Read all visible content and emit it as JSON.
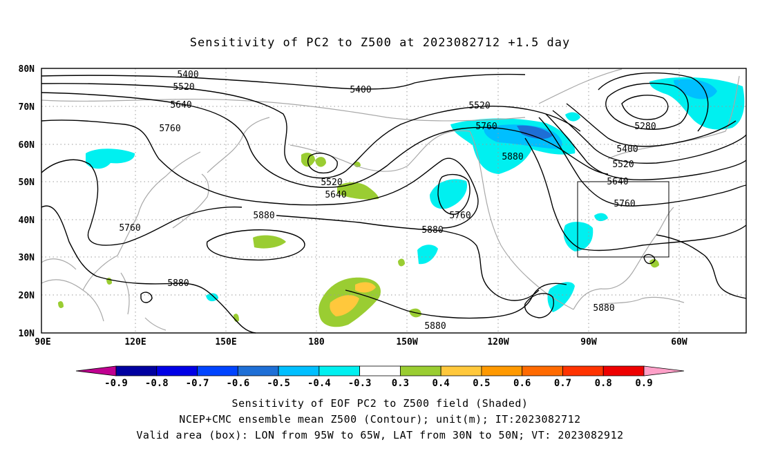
{
  "title": "Sensitivity of PC2 to Z500 at 2023082712 +1.5 day",
  "map": {
    "lon_ticks": [
      "90E",
      "120E",
      "150E",
      "180",
      "150W",
      "120W",
      "90W",
      "60W"
    ],
    "lat_ticks": [
      "80N",
      "70N",
      "60N",
      "50N",
      "40N",
      "30N",
      "20N",
      "10N"
    ],
    "lon_range": [
      "90E",
      "40W"
    ],
    "lat_range": [
      "10N",
      "80N"
    ],
    "grid": "dotted",
    "valid_box": {
      "lon": [
        "95W",
        "65W"
      ],
      "lat": [
        "30N",
        "50N"
      ]
    },
    "contour_labels": [
      "5400",
      "5520",
      "5640",
      "5760",
      "5400",
      "5520",
      "5760",
      "5880",
      "5520",
      "5640",
      "5880",
      "5760",
      "5880",
      "5760",
      "5280",
      "5400",
      "5520",
      "5640",
      "5760",
      "5880",
      "5880",
      "5880"
    ],
    "colors": {
      "contour": "#000000",
      "coastline": "#a8a8a8",
      "neg_strong": "#1e6fd6",
      "neg_mid": "#00bfff",
      "neg_weak": "#00f0f0",
      "pos_weak": "#9acd32",
      "pos_mid": "#ffc83c"
    }
  },
  "colorbar": {
    "labels": [
      "-0.9",
      "-0.8",
      "-0.7",
      "-0.6",
      "-0.5",
      "-0.4",
      "-0.3",
      "0.3",
      "0.4",
      "0.5",
      "0.6",
      "0.7",
      "0.8",
      "0.9"
    ],
    "colors": [
      "#c00090",
      "#0000a0",
      "#0000e6",
      "#0044ff",
      "#1e6fd6",
      "#00bfff",
      "#00f0f0",
      "#ffffff",
      "#9acd32",
      "#ffc83c",
      "#ff9900",
      "#ff6a00",
      "#ff3300",
      "#ee0000",
      "#ffa0c8"
    ]
  },
  "footer": {
    "line1": "Sensitivity of EOF PC2 to Z500 field (Shaded)",
    "line2": "NCEP+CMC ensemble mean Z500 (Contour); unit(m); IT:2023082712",
    "line3": "Valid area (box): LON from 95W to 65W, LAT from 30N to 50N; VT: 2023082912"
  }
}
